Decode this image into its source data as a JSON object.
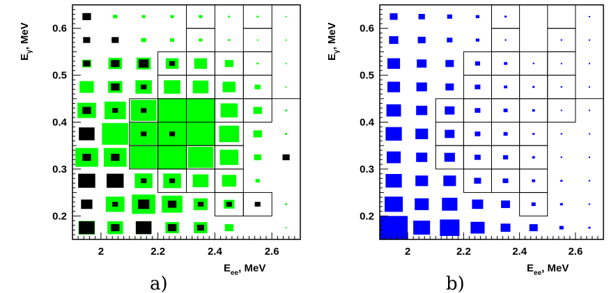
{
  "chart_data": [
    {
      "type": "heatmap",
      "title": "",
      "caption": "a)",
      "xlabel": "E",
      "xlabel_sub": "ee",
      "xlabel_unit": ", MeV",
      "ylabel": "E",
      "ylabel_sub": "γ",
      "ylabel_unit": ", MeV",
      "xlim": [
        1.9,
        2.7
      ],
      "ylim": [
        0.15,
        0.65
      ],
      "xticks": [
        "2",
        "2.2",
        "2.4",
        "2.6"
      ],
      "yticks": [
        "0.2",
        "0.3",
        "0.4",
        "0.5",
        "0.6"
      ],
      "bin_width": 0.1,
      "bin_height": 0.05,
      "x_centers": [
        1.95,
        2.05,
        2.15,
        2.25,
        2.35,
        2.45,
        2.55,
        2.65
      ],
      "y_centers": [
        0.175,
        0.225,
        0.275,
        0.325,
        0.375,
        0.425,
        0.475,
        0.525,
        0.575,
        0.625
      ],
      "series": [
        {
          "name": "",
          "color": "#00ff00",
          "cells": [
            [
              0.575,
              0.55,
              0.55,
              0.475,
              0.475,
              0.3,
              0.0,
              0.05
            ],
            [
              0.325,
              0.65,
              0.825,
              0.725,
              0.5,
              0.375,
              0.0,
              0.075
            ],
            [
              0.325,
              0.0,
              0.625,
              0.625,
              0.55,
              0.5,
              0.15,
              0.0
            ],
            [
              0.8,
              0.8,
              0.95,
              1.0,
              0.9,
              0.65,
              0.25,
              0.075
            ],
            [
              0.0,
              0.925,
              0.95,
              1.0,
              1.0,
              0.7,
              0.3,
              0.075
            ],
            [
              0.65,
              0.75,
              0.9,
              1.0,
              1.0,
              0.6,
              0.3,
              0.075
            ],
            [
              0.5,
              0.5,
              0.575,
              0.575,
              0.55,
              0.45,
              0.2,
              0.05
            ],
            [
              0.325,
              0.475,
              0.5,
              0.45,
              0.45,
              0.3,
              0.075,
              0.025
            ],
            [
              0.0,
              0.175,
              0.175,
              0.15,
              0.125,
              0.075,
              0.05,
              0.025
            ],
            [
              0.0,
              0.15,
              0.125,
              0.125,
              0.125,
              0.075,
              0.075,
              0.025
            ]
          ]
        },
        {
          "name": "",
          "color": "#000000",
          "cells": [
            [
              0.55,
              0.3,
              0.55,
              0.3,
              0.25,
              0.0,
              0.0,
              0.0
            ],
            [
              0.4,
              0.2,
              0.4,
              0.3,
              0.2,
              0.2,
              0.2,
              0.0
            ],
            [
              0.6,
              0.6,
              0.2,
              0.2,
              0.0,
              0.0,
              0.0,
              0.0
            ],
            [
              0.3,
              0.3,
              0.0,
              0.0,
              0.0,
              0.0,
              0.0,
              0.25
            ],
            [
              0.55,
              0.0,
              0.2,
              0.2,
              0.0,
              0.0,
              0.0,
              0.0
            ],
            [
              0.3,
              0.2,
              0.2,
              0.0,
              0.0,
              0.0,
              0.0,
              0.0
            ],
            [
              0.0,
              0.3,
              0.2,
              0.0,
              0.0,
              0.0,
              0.0,
              0.0
            ],
            [
              0.25,
              0.3,
              0.35,
              0.2,
              0.0,
              0.0,
              0.0,
              0.0
            ],
            [
              0.25,
              0.25,
              0.0,
              0.0,
              0.0,
              0.0,
              0.0,
              0.0
            ],
            [
              0.3,
              0.0,
              0.0,
              0.0,
              0.0,
              0.0,
              0.0,
              0.0
            ]
          ]
        }
      ],
      "region_cells": [
        [
          2.4,
          0.2
        ],
        [
          2.5,
          0.2
        ],
        [
          2.2,
          0.25
        ],
        [
          2.3,
          0.25
        ],
        [
          2.4,
          0.25
        ],
        [
          2.1,
          0.3
        ],
        [
          2.2,
          0.3
        ],
        [
          2.3,
          0.3
        ],
        [
          2.4,
          0.3
        ],
        [
          2.1,
          0.35
        ],
        [
          2.2,
          0.35
        ],
        [
          2.3,
          0.35
        ],
        [
          2.4,
          0.35
        ],
        [
          2.1,
          0.4
        ],
        [
          2.2,
          0.4
        ],
        [
          2.3,
          0.4
        ],
        [
          2.4,
          0.4
        ],
        [
          2.5,
          0.4
        ],
        [
          2.2,
          0.45
        ],
        [
          2.3,
          0.45
        ],
        [
          2.4,
          0.45
        ],
        [
          2.5,
          0.45
        ],
        [
          2.2,
          0.5
        ],
        [
          2.3,
          0.5
        ],
        [
          2.4,
          0.5
        ],
        [
          2.5,
          0.5
        ],
        [
          2.3,
          0.55
        ],
        [
          2.5,
          0.55
        ],
        [
          2.3,
          0.6
        ],
        [
          2.5,
          0.6
        ]
      ],
      "open_line_y": 0.45
    },
    {
      "type": "heatmap",
      "title": "",
      "caption": "b)",
      "xlabel": "E",
      "xlabel_sub": "ee",
      "xlabel_unit": ", MeV",
      "ylabel": "E",
      "ylabel_sub": "γ",
      "ylabel_unit": ", MeV",
      "xlim": [
        1.9,
        2.7
      ],
      "ylim": [
        0.15,
        0.65
      ],
      "xticks": [
        "2",
        "2.2",
        "2.4",
        "2.6"
      ],
      "yticks": [
        "0.2",
        "0.3",
        "0.4",
        "0.5",
        "0.6"
      ],
      "bin_width": 0.1,
      "bin_height": 0.05,
      "x_centers": [
        1.95,
        2.05,
        2.15,
        2.25,
        2.35,
        2.45,
        2.55,
        2.65
      ],
      "y_centers": [
        0.175,
        0.225,
        0.275,
        0.325,
        0.375,
        0.425,
        0.475,
        0.525,
        0.575,
        0.625
      ],
      "series": [
        {
          "name": "",
          "color": "#0000ff",
          "cells": [
            [
              1.0,
              0.6,
              0.7,
              0.5,
              0.35,
              0.3,
              0.15,
              0.08
            ],
            [
              0.65,
              0.5,
              0.55,
              0.4,
              0.32,
              0.15,
              0.1,
              0.06
            ],
            [
              0.58,
              0.45,
              0.45,
              0.25,
              0.2,
              0.12,
              0.08,
              0.06
            ],
            [
              0.5,
              0.4,
              0.38,
              0.22,
              0.18,
              0.1,
              0.06,
              0.05
            ],
            [
              0.58,
              0.45,
              0.35,
              0.2,
              0.15,
              0.08,
              0.06,
              0.04
            ],
            [
              0.52,
              0.4,
              0.35,
              0.2,
              0.15,
              0.1,
              0.05,
              0.03
            ],
            [
              0.45,
              0.38,
              0.3,
              0.2,
              0.12,
              0.08,
              0.06,
              0.05
            ],
            [
              0.45,
              0.35,
              0.3,
              0.18,
              0.12,
              0.06,
              0.04,
              0.04
            ],
            [
              0.33,
              0.28,
              0.2,
              0.13,
              0.06,
              0.0,
              0.06,
              0.04
            ],
            [
              0.28,
              0.23,
              0.18,
              0.13,
              0.08,
              0.0,
              0.0,
              0.04
            ]
          ]
        }
      ],
      "region_cells": [
        [
          2.4,
          0.2
        ],
        [
          2.2,
          0.25
        ],
        [
          2.3,
          0.25
        ],
        [
          2.4,
          0.25
        ],
        [
          2.1,
          0.3
        ],
        [
          2.2,
          0.3
        ],
        [
          2.3,
          0.3
        ],
        [
          2.4,
          0.3
        ],
        [
          2.1,
          0.35
        ],
        [
          2.2,
          0.35
        ],
        [
          2.3,
          0.35
        ],
        [
          2.4,
          0.35
        ],
        [
          2.1,
          0.4
        ],
        [
          2.2,
          0.4
        ],
        [
          2.3,
          0.4
        ],
        [
          2.4,
          0.4
        ],
        [
          2.5,
          0.4
        ],
        [
          2.2,
          0.45
        ],
        [
          2.3,
          0.45
        ],
        [
          2.4,
          0.45
        ],
        [
          2.5,
          0.45
        ],
        [
          2.2,
          0.5
        ],
        [
          2.3,
          0.5
        ],
        [
          2.4,
          0.5
        ],
        [
          2.5,
          0.5
        ],
        [
          2.3,
          0.55
        ],
        [
          2.5,
          0.55
        ],
        [
          2.3,
          0.6
        ],
        [
          2.5,
          0.6
        ]
      ],
      "open_line_y": 0.45
    }
  ]
}
